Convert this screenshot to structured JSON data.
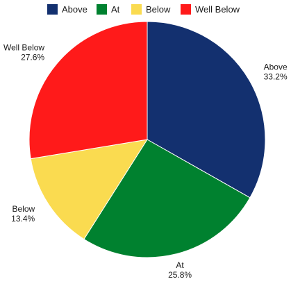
{
  "chart_data": {
    "type": "pie",
    "categories": [
      "Above",
      "At",
      "Below",
      "Well Below"
    ],
    "values": [
      33.2,
      25.8,
      13.4,
      27.6
    ],
    "value_labels": [
      "33.2%",
      "25.8%",
      "13.4%",
      "27.6%"
    ],
    "colors": [
      "#13306f",
      "#00812f",
      "#fadb50",
      "#ff1a1a"
    ],
    "start_angle": "12 o'clock",
    "direction": "clockwise",
    "legend": {
      "placement": "top-center",
      "entries": [
        "Above",
        "At",
        "Below",
        "Well Below"
      ]
    },
    "label_position": "outside"
  }
}
